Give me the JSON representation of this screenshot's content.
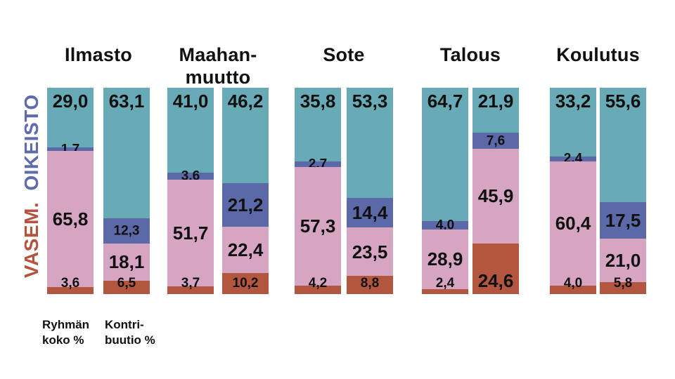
{
  "page": {
    "background": "#ffffff"
  },
  "colors": {
    "teal": "#68aab6",
    "blue": "#5b69a8",
    "pink": "#d6a5c2",
    "red": "#b25640",
    "text": "#111111",
    "oikeisto_text": "#5e6cae",
    "vasem_text": "#b5543e"
  },
  "axis": {
    "right_label": "OIKEISTO",
    "left_label": "VASEM."
  },
  "captions": {
    "bar1_lines": [
      "Ryhmän",
      "koko %"
    ],
    "bar2_lines": [
      "Kontri-",
      "buutio %"
    ]
  },
  "chart_data": {
    "type": "bar",
    "subtype": "stacked-100-percent",
    "value_format": "comma-decimal, one decimal place",
    "ylim": [
      0,
      100
    ],
    "grid": false,
    "legend_position": "left-rotated (OIKEISTO top, VASEM. bottom)",
    "segments_top_to_bottom": [
      {
        "key": "teal",
        "color": "#68aab6",
        "bloc": "oikeisto"
      },
      {
        "key": "blue",
        "color": "#5b69a8",
        "bloc": "oikeisto-lean"
      },
      {
        "key": "pink",
        "color": "#d6a5c2",
        "bloc": "vasemmisto-lean"
      },
      {
        "key": "red",
        "color": "#b25640",
        "bloc": "vasemmisto"
      }
    ],
    "bar_types": [
      "Ryhmän koko %",
      "Kontribuutio %"
    ],
    "groups": [
      {
        "title_lines": [
          "Ilmasto"
        ],
        "bars": [
          [
            29.0,
            1.7,
            65.8,
            3.6
          ],
          [
            63.1,
            12.3,
            18.1,
            6.5
          ]
        ]
      },
      {
        "title_lines": [
          "Maahan-",
          "muutto"
        ],
        "bars": [
          [
            41.0,
            3.6,
            51.7,
            3.7
          ],
          [
            46.2,
            21.2,
            22.4,
            10.2
          ]
        ]
      },
      {
        "title_lines": [
          "Sote"
        ],
        "bars": [
          [
            35.8,
            2.7,
            57.3,
            4.2
          ],
          [
            53.3,
            14.4,
            23.5,
            8.8
          ]
        ]
      },
      {
        "title_lines": [
          "Talous"
        ],
        "bars": [
          [
            64.7,
            4.0,
            28.9,
            2.4
          ],
          [
            21.9,
            7.6,
            45.9,
            24.6
          ]
        ]
      },
      {
        "title_lines": [
          "Koulutus"
        ],
        "bars": [
          [
            33.2,
            2.4,
            60.4,
            4.0
          ],
          [
            55.6,
            17.5,
            21.0,
            5.8
          ]
        ]
      }
    ]
  }
}
